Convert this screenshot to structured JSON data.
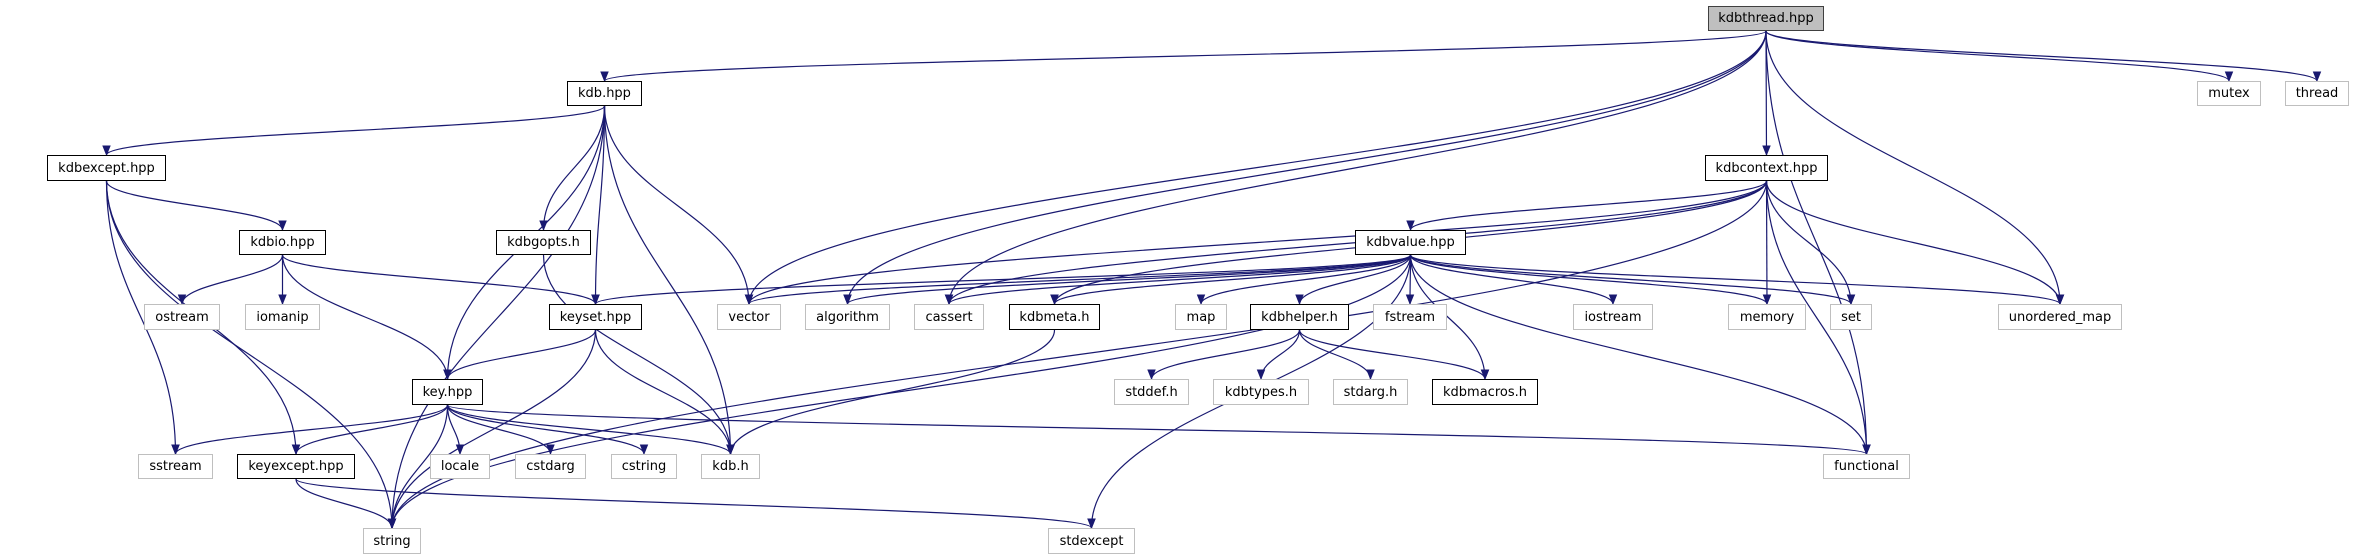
{
  "graph": {
    "root": "kdbthread.hpp",
    "colors": {
      "edge": "#191970",
      "local_border": "#000000",
      "system_border": "#bfbfbf",
      "root_fill": "#bfbfbf"
    },
    "nodes": [
      {
        "id": "kdbthread.hpp",
        "kind": "root"
      },
      {
        "id": "kdb.hpp",
        "kind": "local"
      },
      {
        "id": "kdbexcept.hpp",
        "kind": "local"
      },
      {
        "id": "kdbio.hpp",
        "kind": "local"
      },
      {
        "id": "kdbgopts.h",
        "kind": "local"
      },
      {
        "id": "ostream",
        "kind": "system"
      },
      {
        "id": "iomanip",
        "kind": "system"
      },
      {
        "id": "keyset.hpp",
        "kind": "local"
      },
      {
        "id": "vector",
        "kind": "system"
      },
      {
        "id": "key.hpp",
        "kind": "local"
      },
      {
        "id": "sstream",
        "kind": "system"
      },
      {
        "id": "keyexcept.hpp",
        "kind": "local"
      },
      {
        "id": "locale",
        "kind": "system"
      },
      {
        "id": "cstdarg",
        "kind": "system"
      },
      {
        "id": "cstring",
        "kind": "system"
      },
      {
        "id": "kdb.h",
        "kind": "system"
      },
      {
        "id": "string",
        "kind": "system"
      },
      {
        "id": "algorithm",
        "kind": "system"
      },
      {
        "id": "cassert",
        "kind": "system"
      },
      {
        "id": "kdbmeta.h",
        "kind": "local"
      },
      {
        "id": "map",
        "kind": "system"
      },
      {
        "id": "kdbhelper.h",
        "kind": "local"
      },
      {
        "id": "fstream",
        "kind": "system"
      },
      {
        "id": "kdbvalue.hpp",
        "kind": "local"
      },
      {
        "id": "stddef.h",
        "kind": "system"
      },
      {
        "id": "kdbtypes.h",
        "kind": "system"
      },
      {
        "id": "stdarg.h",
        "kind": "system"
      },
      {
        "id": "kdbmacros.h",
        "kind": "local"
      },
      {
        "id": "stdexcept",
        "kind": "system"
      },
      {
        "id": "iostream",
        "kind": "system"
      },
      {
        "id": "mutex",
        "kind": "system"
      },
      {
        "id": "thread",
        "kind": "system"
      },
      {
        "id": "kdbcontext.hpp",
        "kind": "local"
      },
      {
        "id": "memory",
        "kind": "system"
      },
      {
        "id": "set",
        "kind": "system"
      },
      {
        "id": "unordered_map",
        "kind": "system"
      },
      {
        "id": "functional",
        "kind": "system"
      }
    ],
    "edges": [
      [
        "kdbthread.hpp",
        "kdb.hpp"
      ],
      [
        "kdbthread.hpp",
        "vector"
      ],
      [
        "kdbthread.hpp",
        "algorithm"
      ],
      [
        "kdbthread.hpp",
        "cassert"
      ],
      [
        "kdbthread.hpp",
        "kdbcontext.hpp"
      ],
      [
        "kdbthread.hpp",
        "unordered_map"
      ],
      [
        "kdbthread.hpp",
        "functional"
      ],
      [
        "kdbthread.hpp",
        "mutex"
      ],
      [
        "kdbthread.hpp",
        "thread"
      ],
      [
        "kdb.hpp",
        "kdbexcept.hpp"
      ],
      [
        "kdb.hpp",
        "string"
      ],
      [
        "kdb.hpp",
        "key.hpp"
      ],
      [
        "kdb.hpp",
        "kdbgopts.h"
      ],
      [
        "kdb.hpp",
        "keyset.hpp"
      ],
      [
        "kdb.hpp",
        "kdb.h"
      ],
      [
        "kdb.hpp",
        "vector"
      ],
      [
        "kdbexcept.hpp",
        "string"
      ],
      [
        "kdbexcept.hpp",
        "sstream"
      ],
      [
        "kdbexcept.hpp",
        "keyexcept.hpp"
      ],
      [
        "kdbexcept.hpp",
        "kdbio.hpp"
      ],
      [
        "kdbio.hpp",
        "ostream"
      ],
      [
        "kdbio.hpp",
        "iomanip"
      ],
      [
        "kdbio.hpp",
        "key.hpp"
      ],
      [
        "kdbio.hpp",
        "keyset.hpp"
      ],
      [
        "kdbgopts.h",
        "kdb.h"
      ],
      [
        "keyset.hpp",
        "key.hpp"
      ],
      [
        "keyset.hpp",
        "kdb.h"
      ],
      [
        "keyset.hpp",
        "string"
      ],
      [
        "key.hpp",
        "sstream"
      ],
      [
        "key.hpp",
        "keyexcept.hpp"
      ],
      [
        "key.hpp",
        "string"
      ],
      [
        "key.hpp",
        "locale"
      ],
      [
        "key.hpp",
        "cstdarg"
      ],
      [
        "key.hpp",
        "cstring"
      ],
      [
        "key.hpp",
        "kdb.h"
      ],
      [
        "key.hpp",
        "functional"
      ],
      [
        "keyexcept.hpp",
        "string"
      ],
      [
        "keyexcept.hpp",
        "stdexcept"
      ],
      [
        "kdbcontext.hpp",
        "kdbvalue.hpp"
      ],
      [
        "kdbcontext.hpp",
        "vector"
      ],
      [
        "kdbcontext.hpp",
        "cassert"
      ],
      [
        "kdbcontext.hpp",
        "kdbmeta.h"
      ],
      [
        "kdbcontext.hpp",
        "memory"
      ],
      [
        "kdbcontext.hpp",
        "set"
      ],
      [
        "kdbcontext.hpp",
        "unordered_map"
      ],
      [
        "kdbcontext.hpp",
        "functional"
      ],
      [
        "kdbcontext.hpp",
        "string"
      ],
      [
        "kdbvalue.hpp",
        "vector"
      ],
      [
        "kdbvalue.hpp",
        "algorithm"
      ],
      [
        "kdbvalue.hpp",
        "cassert"
      ],
      [
        "kdbvalue.hpp",
        "kdbmeta.h"
      ],
      [
        "kdbvalue.hpp",
        "keyset.hpp"
      ],
      [
        "kdbvalue.hpp",
        "map"
      ],
      [
        "kdbvalue.hpp",
        "kdbhelper.h"
      ],
      [
        "kdbvalue.hpp",
        "fstream"
      ],
      [
        "kdbvalue.hpp",
        "iostream"
      ],
      [
        "kdbvalue.hpp",
        "memory"
      ],
      [
        "kdbvalue.hpp",
        "set"
      ],
      [
        "kdbvalue.hpp",
        "unordered_map"
      ],
      [
        "kdbvalue.hpp",
        "string"
      ],
      [
        "kdbvalue.hpp",
        "stdexcept"
      ],
      [
        "kdbvalue.hpp",
        "functional"
      ],
      [
        "kdbvalue.hpp",
        "kdbmacros.h"
      ],
      [
        "kdbmeta.h",
        "kdb.h"
      ],
      [
        "kdbhelper.h",
        "stddef.h"
      ],
      [
        "kdbhelper.h",
        "kdbtypes.h"
      ],
      [
        "kdbhelper.h",
        "stdarg.h"
      ],
      [
        "kdbhelper.h",
        "kdbmacros.h"
      ]
    ]
  }
}
